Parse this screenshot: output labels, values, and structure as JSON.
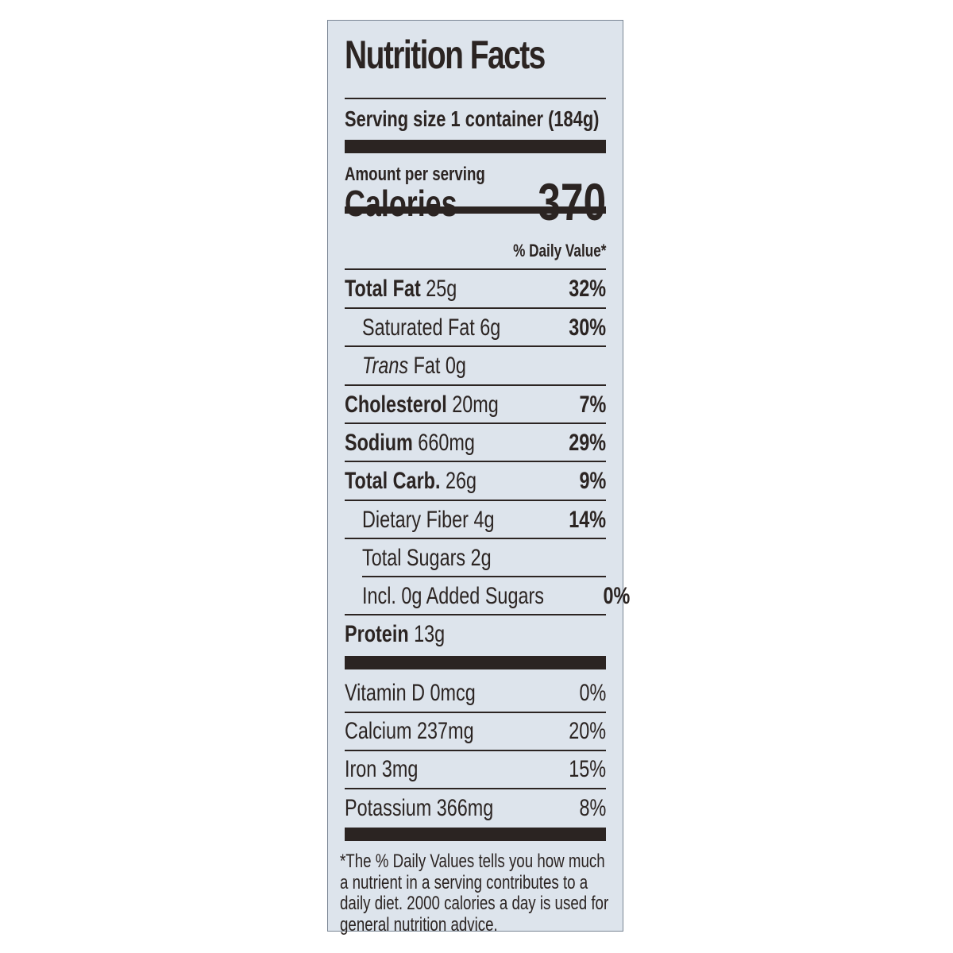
{
  "title": "Nutrition Facts",
  "serving_size": "Serving size 1 container (184g)",
  "amount_per_serving": "Amount per serving",
  "calories_label": "Calories",
  "calories_value": "370",
  "daily_value_header": "% Daily Value*",
  "nutrients": [
    {
      "name": "Total Fat",
      "amount": "25g",
      "dv": "32%"
    },
    {
      "name": "Saturated Fat",
      "amount": "6g",
      "dv": "30%"
    },
    {
      "name": "Trans",
      "suffix": "Fat 0g"
    },
    {
      "name": "Cholesterol",
      "amount": "20mg",
      "dv": "7%"
    },
    {
      "name": "Sodium",
      "amount": "660mg",
      "dv": "29%"
    },
    {
      "name": "Total Carb.",
      "amount": "26g",
      "dv": "9%"
    },
    {
      "name": "Dietary Fiber",
      "amount": "4g",
      "dv": "14%"
    },
    {
      "name": "Total Sugars",
      "amount": "2g"
    },
    {
      "name": "Incl. 0g Added Sugars",
      "dv": "0%"
    },
    {
      "name": "Protein",
      "amount": "13g"
    }
  ],
  "vitamins": [
    {
      "name": "Vitamin D",
      "amount": "0mcg",
      "dv": "0%"
    },
    {
      "name": "Calcium",
      "amount": "237mg",
      "dv": "20%"
    },
    {
      "name": "Iron",
      "amount": "3mg",
      "dv": "15%"
    },
    {
      "name": "Potassium",
      "amount": "366mg",
      "dv": "8%"
    }
  ],
  "footnote": "*The % Daily Values tells you how much a nutrient in a serving contributes to a daily diet. 2000 calories a day is used for general nutrition advice.",
  "colors": {
    "background": "#dde4ec",
    "ink": "#2b2422",
    "border": "#7a8694"
  }
}
